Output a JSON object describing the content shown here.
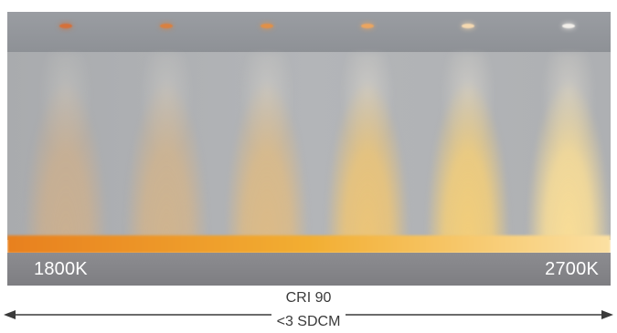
{
  "scale": {
    "start_label": "1800K",
    "end_label": "2700K"
  },
  "specs": {
    "cri": "CRI 90",
    "sdcm": "<3 SDCM"
  },
  "lights": [
    {
      "name": "light-1800k",
      "glow": "#e4b277",
      "dot": "#d4703a",
      "intensity": 0.55
    },
    {
      "name": "light-1980k",
      "glow": "#e6b676",
      "dot": "#d98040",
      "intensity": 0.6
    },
    {
      "name": "light-2160k",
      "glow": "#ecbd74",
      "dot": "#e09048",
      "intensity": 0.72
    },
    {
      "name": "light-2340k",
      "glow": "#f2c670",
      "dot": "#eba560",
      "intensity": 0.9
    },
    {
      "name": "light-2520k",
      "glow": "#f6cf76",
      "dot": "#f4d8b0",
      "intensity": 0.95
    },
    {
      "name": "light-2700k",
      "glow": "#f9dd96",
      "dot": "#f2efea",
      "intensity": 1.0
    }
  ],
  "colors": {
    "strip_start": "#e8801e",
    "strip_mid": "#f2ae32",
    "strip_end": "#fbe0a2"
  }
}
